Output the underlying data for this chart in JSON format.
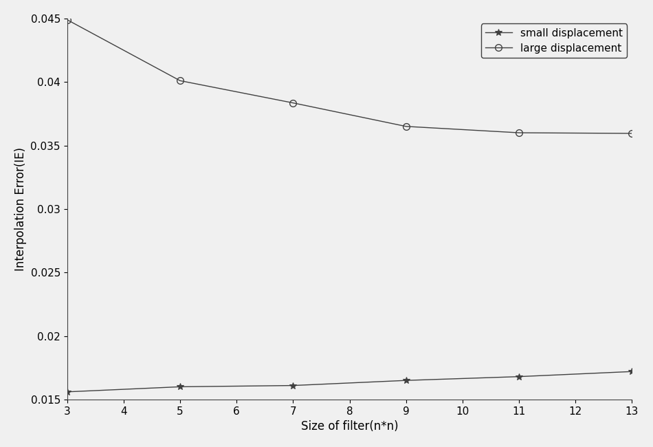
{
  "x": [
    3,
    5,
    7,
    9,
    11,
    13
  ],
  "small_displacement": [
    0.0156,
    0.016,
    0.0161,
    0.0165,
    0.0168,
    0.0172
  ],
  "large_displacement": [
    0.0449,
    0.0401,
    0.03835,
    0.0365,
    0.036,
    0.03595
  ],
  "xlabel": "Size of filter(n*n)",
  "ylabel": "Interpolation Error(IE)",
  "small_label": "small displacement",
  "large_label": "large displacement",
  "xlim": [
    3,
    13
  ],
  "ylim": [
    0.015,
    0.045
  ],
  "xticks": [
    3,
    4,
    5,
    6,
    7,
    8,
    9,
    10,
    11,
    12,
    13
  ],
  "yticks": [
    0.015,
    0.02,
    0.025,
    0.03,
    0.035,
    0.04,
    0.045
  ],
  "ytick_labels": [
    "0.015",
    "0.02",
    "0.025",
    "0.03",
    "0.035",
    "0.04",
    "0.045"
  ],
  "line_color": "#404040",
  "background_color": "#f0f0f0",
  "legend_loc": "upper right"
}
